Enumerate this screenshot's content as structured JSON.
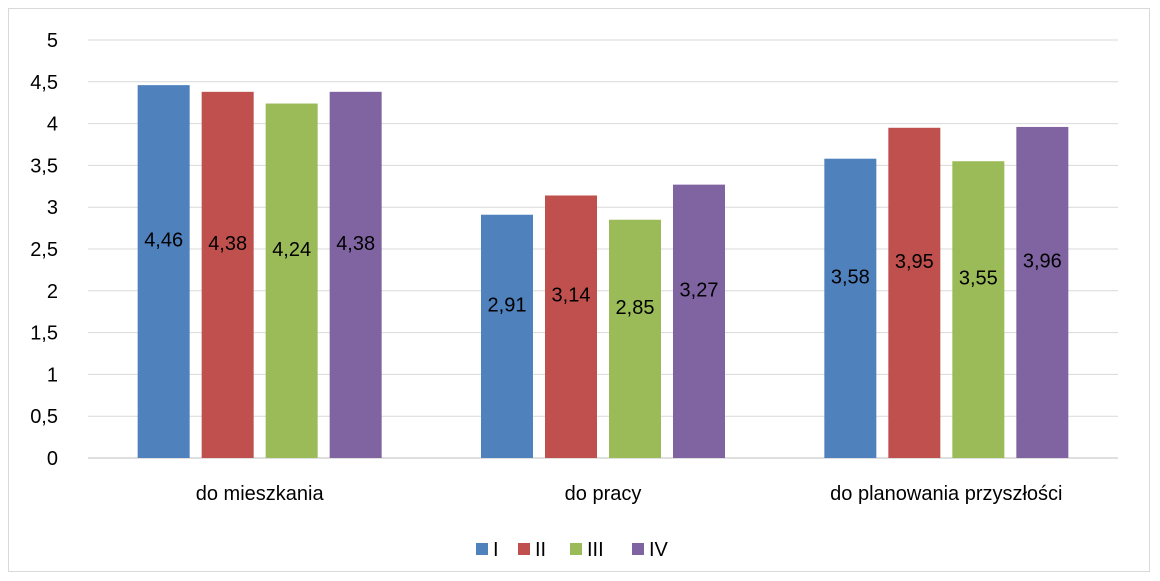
{
  "chart_data": {
    "type": "bar",
    "title": "",
    "xlabel": "",
    "ylabel": "",
    "categories": [
      "do mieszkania",
      "do pracy",
      "do planowania przyszłości"
    ],
    "series": [
      {
        "name": "I",
        "color": "#4f81bd",
        "values": [
          4.46,
          2.91,
          3.58
        ],
        "labels": [
          "4,46",
          "2,91",
          "3,58"
        ]
      },
      {
        "name": "II",
        "color": "#c0504d",
        "values": [
          4.38,
          3.14,
          3.95
        ],
        "labels": [
          "4,38",
          "3,14",
          "3,95"
        ]
      },
      {
        "name": "III",
        "color": "#9bbb59",
        "values": [
          4.24,
          2.85,
          3.55
        ],
        "labels": [
          "4,24",
          "2,85",
          "3,55"
        ]
      },
      {
        "name": "IV",
        "color": "#8064a2",
        "values": [
          4.38,
          3.27,
          3.96
        ],
        "labels": [
          "4,38",
          "3,27",
          "3,96"
        ]
      }
    ],
    "ylim": [
      0,
      5
    ],
    "y_ticks": [
      {
        "value": 0,
        "label": "0"
      },
      {
        "value": 0.5,
        "label": "0,5"
      },
      {
        "value": 1,
        "label": "1"
      },
      {
        "value": 1.5,
        "label": "1,5"
      },
      {
        "value": 2,
        "label": "2"
      },
      {
        "value": 2.5,
        "label": "2,5"
      },
      {
        "value": 3,
        "label": "3"
      },
      {
        "value": 3.5,
        "label": "3,5"
      },
      {
        "value": 4,
        "label": "4"
      },
      {
        "value": 4.5,
        "label": "4,5"
      },
      {
        "value": 5,
        "label": "5"
      }
    ],
    "grid": true,
    "gridline_color": "#d9d9d9",
    "legend_position": "bottom"
  }
}
